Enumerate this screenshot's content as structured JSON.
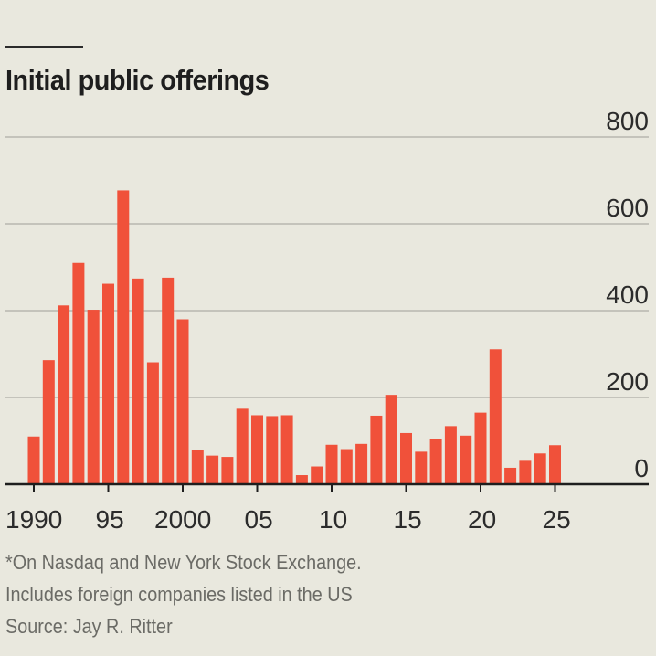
{
  "header": {
    "title": "Initial public offerings"
  },
  "footer": {
    "note_line1": "*On Nasdaq and New York Stock Exchange.",
    "note_line2": "Includes foreign companies listed in the US",
    "source": "Source: Jay R. Ritter"
  },
  "colors": {
    "background": "#e9e8de",
    "bar": "#f0513a",
    "gridline": "#c4c3bb",
    "axis": "#1e1e1e",
    "text": "#2b2b2b"
  },
  "chart_data": {
    "type": "bar",
    "title": "Initial public offerings",
    "xlabel": "",
    "ylabel": "",
    "ylim": [
      0,
      800
    ],
    "yticks": [
      0,
      200,
      400,
      600,
      800
    ],
    "ytick_labels": [
      "0",
      "200",
      "400",
      "600",
      "800"
    ],
    "y_axis_side": "right",
    "grid": true,
    "xticks": [
      1990,
      1995,
      2000,
      2005,
      2010,
      2015,
      2020,
      2025
    ],
    "xtick_labels": [
      "1990",
      "95",
      "2000",
      "05",
      "10",
      "15",
      "20",
      "25"
    ],
    "categories": [
      1990,
      1991,
      1992,
      1993,
      1994,
      1995,
      1996,
      1997,
      1998,
      1999,
      2000,
      2001,
      2002,
      2003,
      2004,
      2005,
      2006,
      2007,
      2008,
      2009,
      2010,
      2011,
      2012,
      2013,
      2014,
      2015,
      2016,
      2017,
      2018,
      2019,
      2020,
      2021,
      2022,
      2023,
      2024,
      2025
    ],
    "values": [
      110,
      286,
      412,
      510,
      402,
      462,
      677,
      474,
      281,
      476,
      380,
      80,
      66,
      63,
      174,
      159,
      157,
      159,
      21,
      41,
      91,
      81,
      93,
      158,
      206,
      118,
      75,
      105,
      134,
      112,
      165,
      311,
      38,
      54,
      71,
      90
    ],
    "legend": null
  }
}
